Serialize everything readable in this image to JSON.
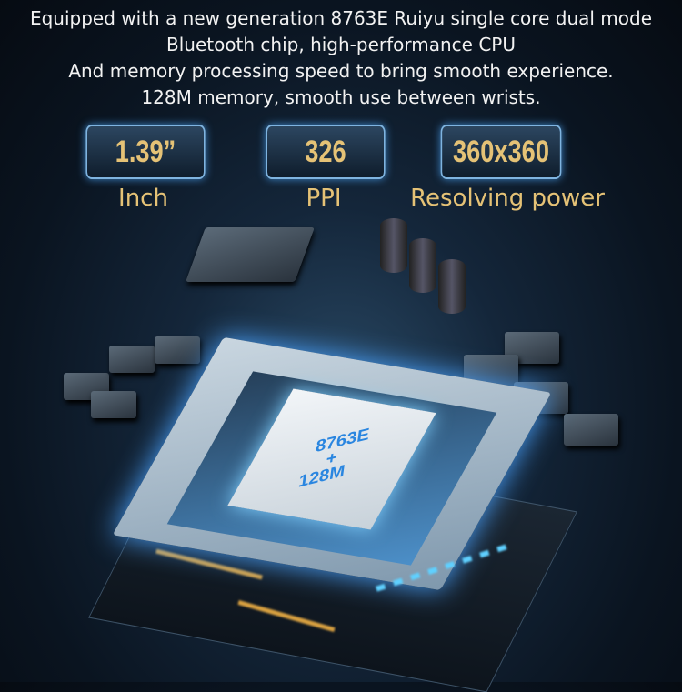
{
  "intro": {
    "lines": [
      "Equipped with a new generation 8763E Ruiyu single core dual mode",
      "Bluetooth chip, high-performance CPU",
      "And memory processing speed to bring smooth experience.",
      "128M memory, smooth use between wrists."
    ]
  },
  "specs": [
    {
      "value": "1.39”",
      "label": "Inch"
    },
    {
      "value": "326",
      "label": "PPI"
    },
    {
      "value": "360x360",
      "label": "Resolving power"
    }
  ],
  "chip": {
    "line1": "8763E",
    "plus": "+",
    "line2": "128M"
  },
  "colors": {
    "accent_gold": "#e5c276",
    "box_border": "#7fb4e0",
    "chip_text": "#2a86e0"
  }
}
